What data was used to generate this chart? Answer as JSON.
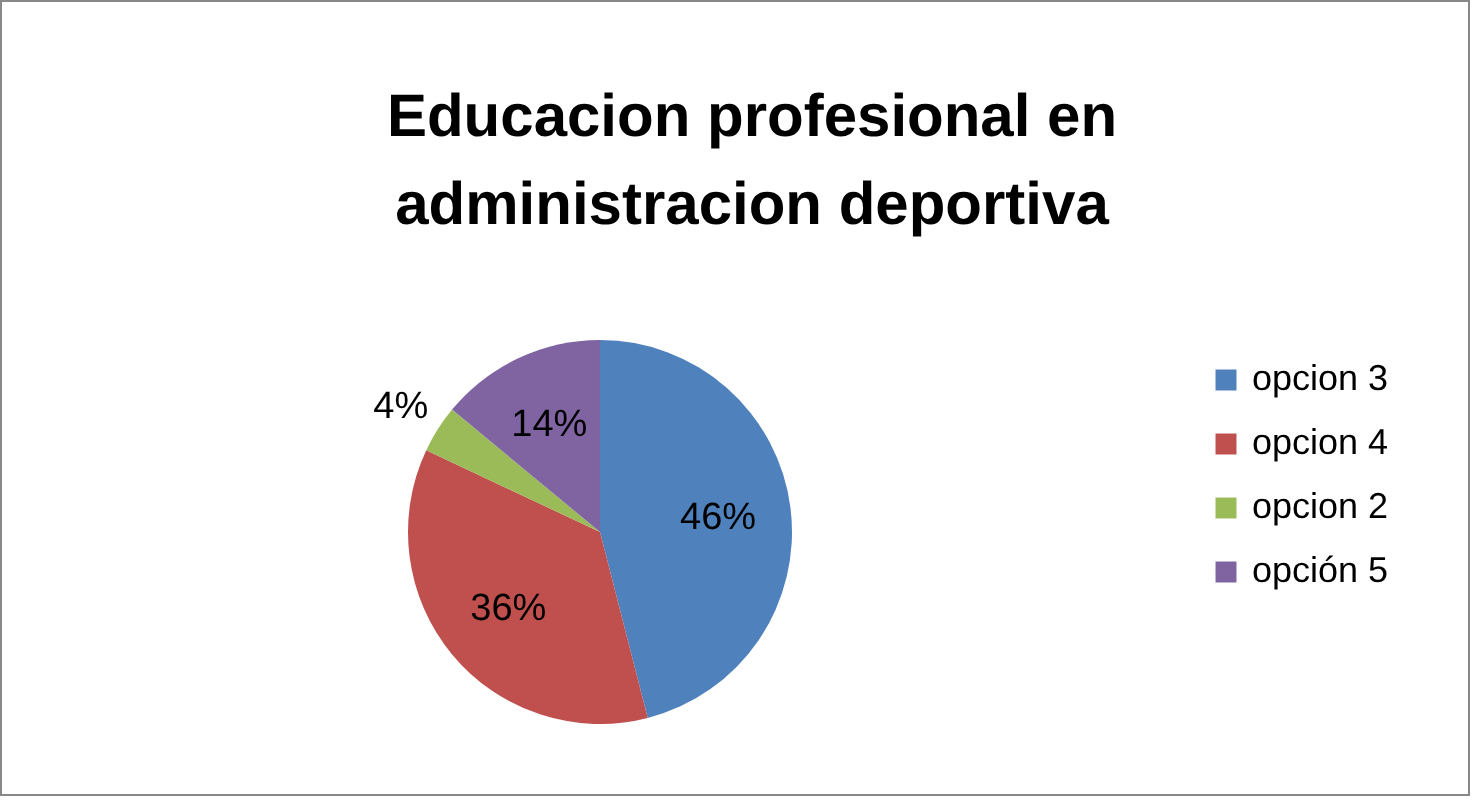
{
  "chart_data": {
    "type": "pie",
    "title": "Educacion profesional en administracion deportiva",
    "categories": [
      "opcion 3",
      "opcion 4",
      "opcion 2",
      "opción 5"
    ],
    "values": [
      46,
      36,
      4,
      14
    ],
    "colors": [
      "#4f81bd",
      "#c0504d",
      "#9bbb59",
      "#8064a2"
    ],
    "value_labels": [
      "46%",
      "36%",
      "4%",
      "14%"
    ],
    "legend": "right"
  }
}
